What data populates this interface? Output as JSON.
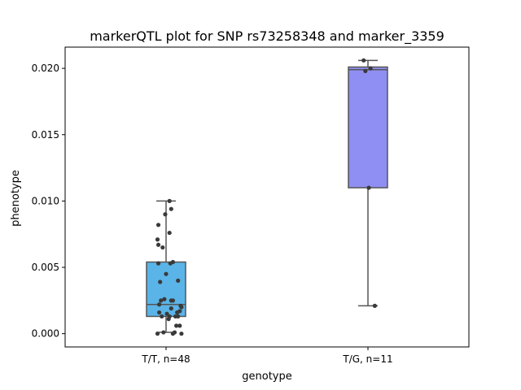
{
  "chart_data": {
    "type": "box",
    "title": "markerQTL plot for SNP rs73258348 and marker_3359",
    "xlabel": "genotype",
    "ylabel": "phenotype",
    "ylim": [
      -0.001,
      0.0216
    ],
    "yticks": [
      0.0,
      0.005,
      0.01,
      0.015,
      0.02
    ],
    "ytick_labels": [
      "0.000",
      "0.005",
      "0.010",
      "0.015",
      "0.020"
    ],
    "grid": false,
    "categories": [
      "T/T, n=48",
      "T/G, n=11"
    ],
    "boxes": [
      {
        "category": "T/T, n=48",
        "color": "#5ab4e8",
        "whisker_low": 0.0001,
        "q1": 0.0013,
        "median": 0.0022,
        "q3": 0.0054,
        "whisker_high": 0.01,
        "points": [
          [
            -0.1,
            0.0
          ],
          [
            0.08,
            0.0
          ],
          [
            0.18,
            0.0
          ],
          [
            -0.03,
            0.0001
          ],
          [
            0.1,
            0.0001
          ],
          [
            0.12,
            0.0006
          ],
          [
            0.16,
            0.0006
          ],
          [
            0.03,
            0.0011
          ],
          [
            -0.05,
            0.0013
          ],
          [
            0.04,
            0.0013
          ],
          [
            0.11,
            0.0013
          ],
          [
            0.14,
            0.0013
          ],
          [
            0.01,
            0.0015
          ],
          [
            0.13,
            0.0016
          ],
          [
            -0.08,
            0.0016
          ],
          [
            0.16,
            0.0017
          ],
          [
            0.06,
            0.0019
          ],
          [
            0.18,
            0.002
          ],
          [
            -0.08,
            0.0022
          ],
          [
            0.17,
            0.0021
          ],
          [
            -0.06,
            0.0025
          ],
          [
            0.06,
            0.0025
          ],
          [
            0.08,
            0.0025
          ],
          [
            -0.02,
            0.0026
          ],
          [
            -0.07,
            0.0039
          ],
          [
            0.14,
            0.004
          ],
          [
            0.0,
            0.0045
          ],
          [
            0.05,
            0.0053
          ],
          [
            0.08,
            0.0054
          ],
          [
            -0.09,
            0.0053
          ],
          [
            -0.09,
            0.0067
          ],
          [
            -0.1,
            0.0071
          ],
          [
            0.04,
            0.0076
          ],
          [
            -0.09,
            0.0082
          ],
          [
            -0.04,
            0.0065
          ],
          [
            0.06,
            0.0094
          ],
          [
            -0.01,
            0.009
          ],
          [
            0.04,
            0.01
          ]
        ]
      },
      {
        "category": "T/G, n=11",
        "color": "#8f8ef2",
        "whisker_low": 0.0021,
        "q1": 0.011,
        "median": 0.0199,
        "q3": 0.0201,
        "whisker_high": 0.0206,
        "points": [
          [
            -0.05,
            0.0206
          ],
          [
            -0.03,
            0.0198
          ],
          [
            0.03,
            0.02
          ],
          [
            0.01,
            0.011
          ],
          [
            0.08,
            0.0021
          ]
        ]
      }
    ]
  }
}
